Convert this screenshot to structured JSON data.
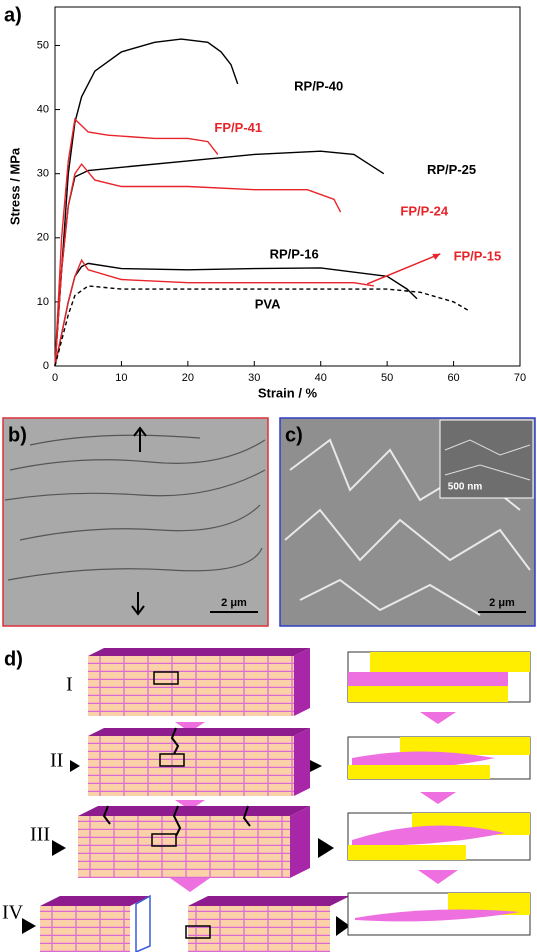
{
  "chart_data": {
    "type": "line",
    "panel_label": "a)",
    "xlabel": "Strain / %",
    "ylabel": "Stress / MPa",
    "xlim": [
      0,
      70
    ],
    "ylim": [
      0,
      56
    ],
    "xticks": [
      0,
      10,
      20,
      30,
      40,
      50,
      60,
      70
    ],
    "yticks": [
      0,
      10,
      20,
      30,
      40,
      50
    ],
    "series": [
      {
        "name": "RP/P-40",
        "color": "#000000",
        "x": [
          0,
          1,
          2,
          3,
          4,
          6,
          10,
          15,
          19,
          23,
          25,
          26.5,
          27.5
        ],
        "values": [
          0,
          15,
          30,
          38,
          42,
          46,
          49,
          50.5,
          51,
          50.5,
          49,
          47,
          44
        ]
      },
      {
        "name": "FP/P-41",
        "color": "#e8242a",
        "x": [
          0,
          1,
          2,
          3,
          4,
          5,
          8,
          15,
          20,
          23,
          24.5
        ],
        "values": [
          0,
          20,
          32,
          38.5,
          37.5,
          36.5,
          36,
          35.5,
          35.5,
          35,
          33
        ]
      },
      {
        "name": "RP/P-25",
        "color": "#000000",
        "x": [
          0,
          1,
          2,
          3,
          5,
          10,
          20,
          30,
          40,
          45,
          48,
          49.5
        ],
        "values": [
          0,
          15,
          25,
          29.5,
          30.5,
          31,
          32,
          33,
          33.5,
          33,
          31,
          30
        ]
      },
      {
        "name": "FP/P-24",
        "color": "#e8242a",
        "x": [
          0,
          1,
          2,
          3,
          4,
          6,
          10,
          20,
          30,
          38,
          42,
          43
        ],
        "values": [
          0,
          15,
          25,
          30,
          31.5,
          29,
          28,
          28,
          27.5,
          27.5,
          26,
          24
        ]
      },
      {
        "name": "RP/P-16",
        "color": "#000000",
        "x": [
          0,
          2,
          3,
          4,
          5,
          10,
          20,
          30,
          40,
          50,
          53,
          54.5
        ],
        "values": [
          0,
          10,
          14,
          15.5,
          16,
          15.2,
          15,
          15.2,
          15.3,
          14,
          12,
          10.5
        ]
      },
      {
        "name": "FP/P-15",
        "color": "#e8242a",
        "x": [
          0,
          2,
          3,
          4,
          5,
          10,
          20,
          30,
          40,
          45,
          48
        ],
        "values": [
          0,
          10,
          14,
          16.5,
          15,
          13.5,
          13,
          13,
          13,
          13,
          12.5
        ]
      },
      {
        "name": "PVA",
        "color": "#000000",
        "dashed": true,
        "x": [
          0,
          2,
          3,
          5,
          10,
          20,
          30,
          40,
          50,
          55,
          60,
          62.5
        ],
        "values": [
          0,
          8,
          11,
          12.5,
          12,
          12,
          12,
          12,
          12,
          11.5,
          10,
          8.5
        ]
      }
    ]
  },
  "panels": {
    "b": {
      "label": "b)",
      "scale_bar": "2 μm"
    },
    "c": {
      "label": "c)",
      "scale_bar": "2 μm",
      "inset_scale_bar": "500 nm"
    },
    "d": {
      "label": "d)",
      "stages": [
        "I",
        "II",
        "III",
        "IV"
      ]
    }
  }
}
